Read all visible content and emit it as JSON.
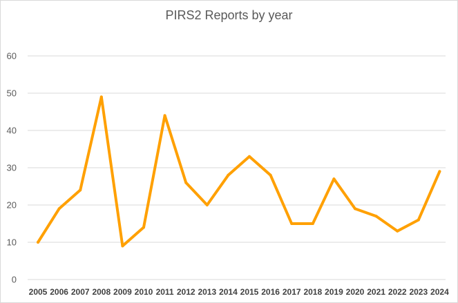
{
  "chart_data": {
    "type": "line",
    "title": "PIRS2 Reports by year",
    "xlabel": "",
    "ylabel": "",
    "categories": [
      "2005",
      "2006",
      "2007",
      "2008",
      "2009",
      "2010",
      "2011",
      "2012",
      "2013",
      "2014",
      "2015",
      "2016",
      "2017",
      "2018",
      "2019",
      "2020",
      "2021",
      "2022",
      "2023",
      "2024"
    ],
    "series": [
      {
        "values": [
          10,
          19,
          24,
          49,
          9,
          14,
          44,
          26,
          20,
          28,
          33,
          28,
          15,
          15,
          27,
          19,
          17,
          13,
          16,
          29
        ]
      }
    ],
    "ylim": [
      0,
      60
    ],
    "yticks": [
      0,
      10,
      20,
      30,
      40,
      50,
      60
    ],
    "grid": true,
    "legend": "none",
    "colors": {
      "line": "#FFA000",
      "grid": "#d9d9d9",
      "text": "#595959"
    }
  }
}
